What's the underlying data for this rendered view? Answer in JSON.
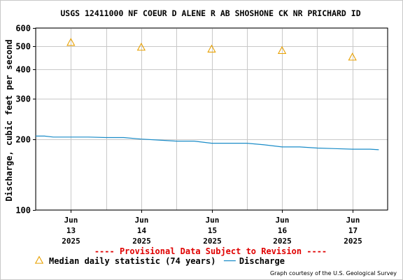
{
  "chart_data": {
    "type": "line",
    "title": "USGS 12411000 NF COEUR D ALENE R AB SHOSHONE CK NR PRICHARD ID",
    "ylabel": "Discharge, cubic feet per second",
    "xlabel": "",
    "yscale": "log",
    "ylim": [
      100,
      600
    ],
    "yticks": [
      100,
      200,
      300,
      400,
      500,
      600
    ],
    "xlim": [
      "2025-06-12 12:00",
      "2025-06-17 12:00"
    ],
    "xticks": [
      {
        "month": "Jun",
        "day": "13",
        "year": "2025",
        "date": "2025-06-13"
      },
      {
        "month": "Jun",
        "day": "14",
        "year": "2025",
        "date": "2025-06-14"
      },
      {
        "month": "Jun",
        "day": "15",
        "year": "2025",
        "date": "2025-06-15"
      },
      {
        "month": "Jun",
        "day": "16",
        "year": "2025",
        "date": "2025-06-16"
      },
      {
        "month": "Jun",
        "day": "17",
        "year": "2025",
        "date": "2025-06-17"
      }
    ],
    "vertical_gridlines": [
      "2025-06-13",
      "2025-06-14",
      "2025-06-15",
      "2025-06-16",
      "2025-06-17",
      "2025-06-12 12:00",
      "2025-06-13 12:00",
      "2025-06-14 12:00",
      "2025-06-15 12:00",
      "2025-06-16 12:00",
      "2025-06-17 12:00"
    ],
    "grid": true,
    "series": [
      {
        "name": "Median daily statistic (74 years)",
        "kind": "marker",
        "marker": "triangle",
        "color": "#e8a000",
        "points": [
          {
            "x": "2025-06-13",
            "y": 520
          },
          {
            "x": "2025-06-14",
            "y": 496
          },
          {
            "x": "2025-06-15",
            "y": 487
          },
          {
            "x": "2025-06-16",
            "y": 480
          },
          {
            "x": "2025-06-17",
            "y": 450
          }
        ]
      },
      {
        "name": "Discharge",
        "kind": "line",
        "color": "#1a8cc8",
        "points": [
          {
            "x": "2025-06-12 12:00",
            "y": 207
          },
          {
            "x": "2025-06-12 15:00",
            "y": 207
          },
          {
            "x": "2025-06-12 18:00",
            "y": 205
          },
          {
            "x": "2025-06-13 00:00",
            "y": 205
          },
          {
            "x": "2025-06-13 06:00",
            "y": 205
          },
          {
            "x": "2025-06-13 12:00",
            "y": 204
          },
          {
            "x": "2025-06-13 18:00",
            "y": 204
          },
          {
            "x": "2025-06-14 00:00",
            "y": 201
          },
          {
            "x": "2025-06-14 06:00",
            "y": 199
          },
          {
            "x": "2025-06-14 12:00",
            "y": 197
          },
          {
            "x": "2025-06-14 18:00",
            "y": 197
          },
          {
            "x": "2025-06-15 00:00",
            "y": 193
          },
          {
            "x": "2025-06-15 06:00",
            "y": 193
          },
          {
            "x": "2025-06-15 12:00",
            "y": 193
          },
          {
            "x": "2025-06-15 18:00",
            "y": 190
          },
          {
            "x": "2025-06-16 00:00",
            "y": 186
          },
          {
            "x": "2025-06-16 06:00",
            "y": 186
          },
          {
            "x": "2025-06-16 12:00",
            "y": 184
          },
          {
            "x": "2025-06-16 18:00",
            "y": 183
          },
          {
            "x": "2025-06-17 00:00",
            "y": 182
          },
          {
            "x": "2025-06-17 06:00",
            "y": 182
          },
          {
            "x": "2025-06-17 09:00",
            "y": 181
          }
        ]
      }
    ],
    "legend": {
      "placement": "bottom",
      "items": [
        {
          "label": "Median daily statistic (74 years)",
          "symbol": "triangle",
          "color": "#e8a000"
        },
        {
          "label": "Discharge",
          "symbol": "line",
          "color": "#1a8cc8"
        }
      ]
    },
    "annotations": {
      "provisional": "---- Provisional Data Subject to Revision ----",
      "provisional_color": "#e00000",
      "credit": "Graph courtesy of the U.S. Geological Survey"
    }
  }
}
